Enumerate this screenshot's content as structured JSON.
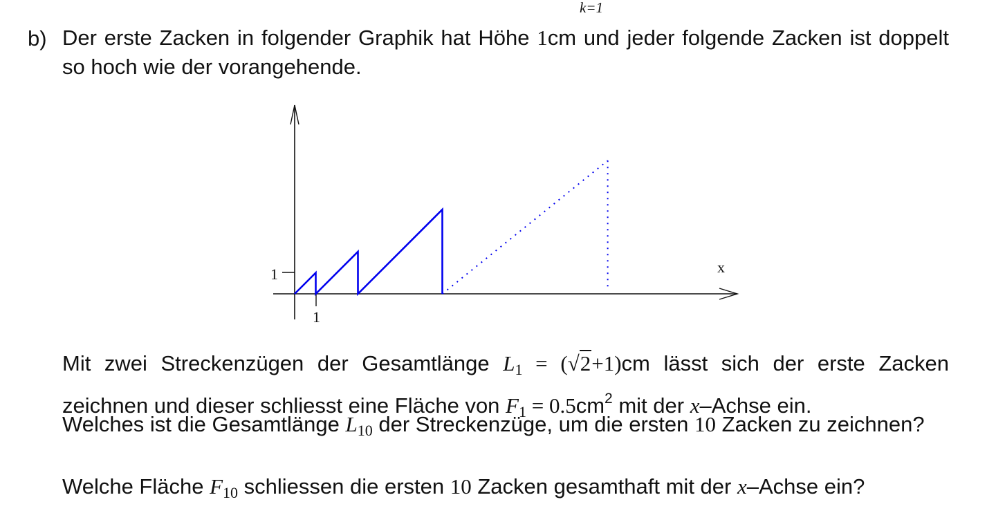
{
  "top_fragment": "k=1",
  "part_label": "b)",
  "intro": {
    "text_a": "Der erste Zacken in folgender Graphik hat Höhe ",
    "value": "1",
    "text_b": "cm und jeder folgende Zacken ist doppelt so hoch wie der vorangehende."
  },
  "figure": {
    "y_tick_label": "1",
    "x_tick_label": "1",
    "x_axis_label": "x",
    "line_color": "#0000ee",
    "axis_color": "#111111",
    "tooth_heights": [
      1,
      2,
      4
    ],
    "dotted_tooth_height": 8
  },
  "para1": {
    "t1": "Mit zwei Streckenzügen der Gesamtlänge ",
    "L": "L",
    "L_sub": "1",
    "eq1": " = (",
    "sqrt_sym": "√",
    "sqrt_arg": "2",
    "eq1_tail": "+1)",
    "t2": "cm lässt sich der erste Zacken zeichnen und dieser schliesst eine Fläche von ",
    "F": "F",
    "F_sub": "1",
    "eq2": " = 0.5",
    "unit": "cm",
    "unit_sup": "2",
    "t3": " mit der ",
    "xvar": "x",
    "t4": "–Achse ein."
  },
  "para2": {
    "t1": "Welches ist die Gesamtlänge ",
    "L": "L",
    "L_sub": "10",
    "t2": " der Streckenzüge, um die ersten ",
    "n": "10",
    "t3": " Zacken zu zeichnen?"
  },
  "para3": {
    "t1": "Welche Fläche ",
    "F": "F",
    "F_sub": "10",
    "t2": " schliessen die ersten ",
    "n": "10",
    "t3": " Zacken gesamthaft mit der ",
    "xvar": "x",
    "t4": "–Achse ein?"
  }
}
